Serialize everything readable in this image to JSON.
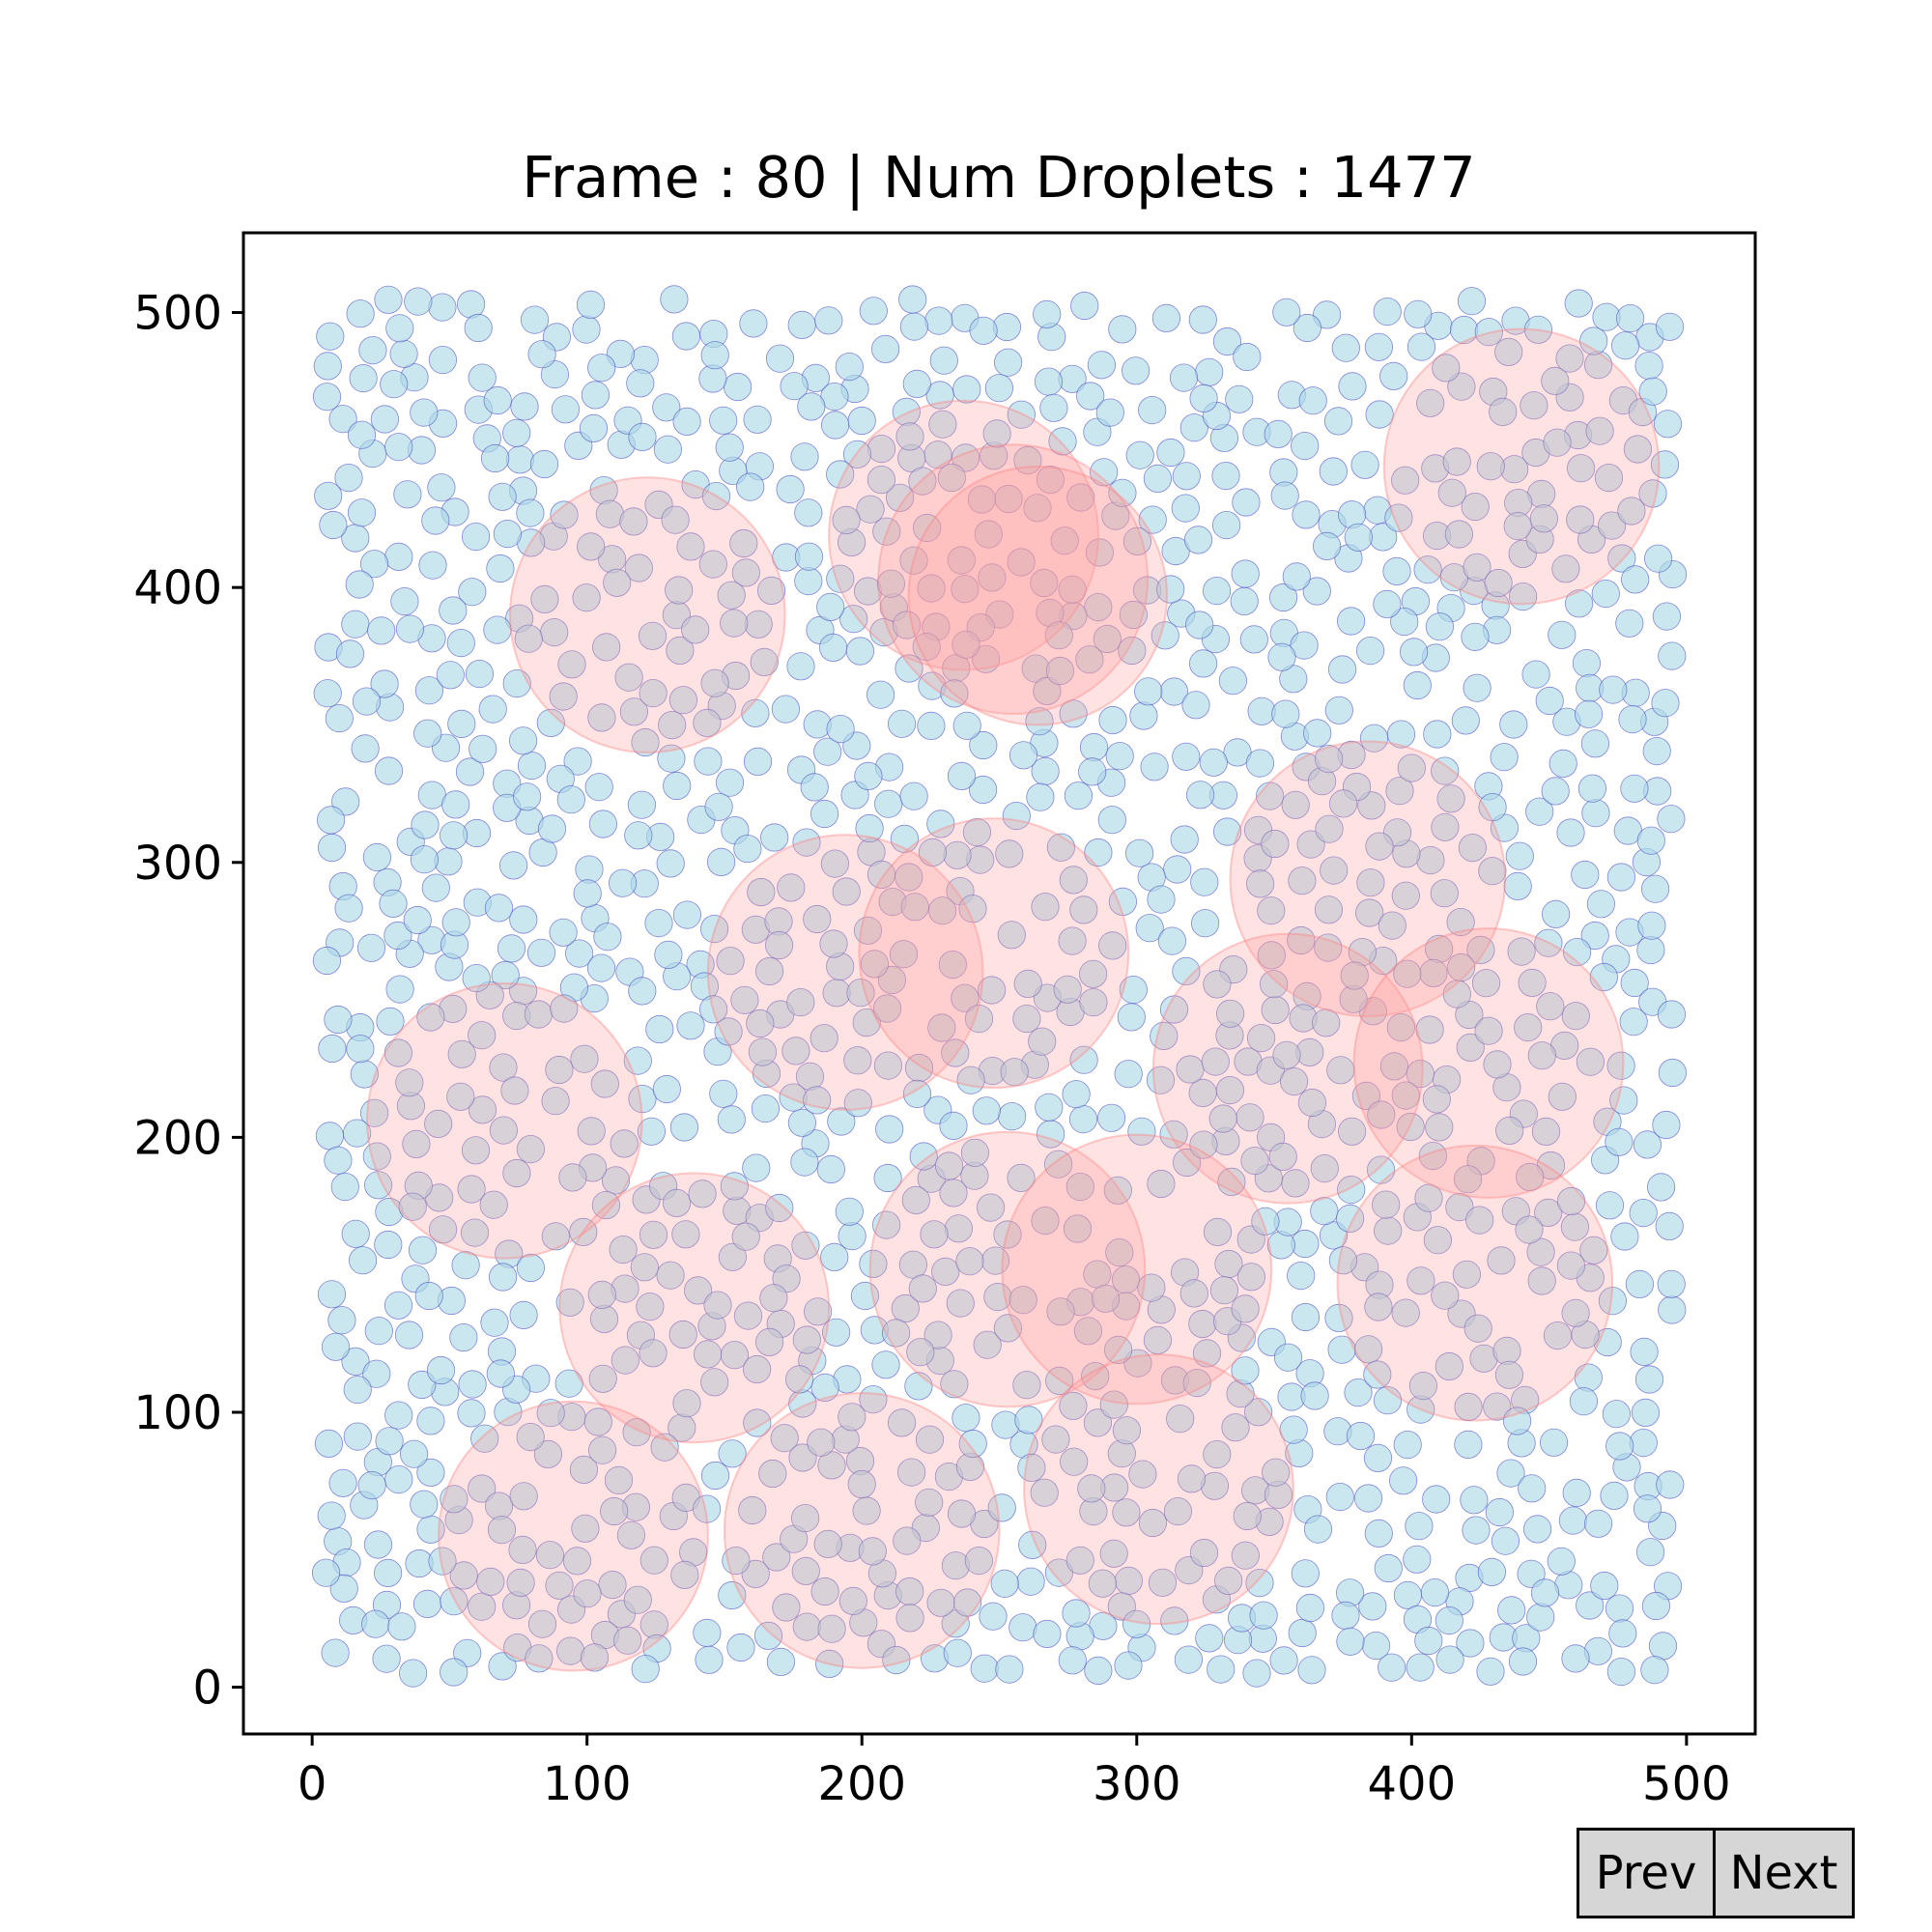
{
  "chart_data": {
    "type": "scatter",
    "title": "Frame : 80 | Num Droplets : 1477",
    "xlabel": "",
    "ylabel": "",
    "xlim": [
      -25,
      525
    ],
    "ylim": [
      -17,
      529
    ],
    "xticks": [
      0,
      100,
      200,
      300,
      400,
      500
    ],
    "yticks": [
      0,
      100,
      200,
      300,
      400,
      500
    ],
    "grid": false,
    "droplets": {
      "count": 1477,
      "radius": 5,
      "fill": "#add8e6",
      "fill_opacity": 0.65,
      "edge": "#3f3fbf",
      "seed": 80,
      "extent_x": [
        5,
        495
      ],
      "extent_y": [
        5,
        505
      ]
    },
    "clusters": {
      "fill": "#ff9999",
      "fill_opacity": 0.28,
      "edge": "#ff8080",
      "items": [
        {
          "x": 122,
          "y": 390,
          "r": 50
        },
        {
          "x": 237,
          "y": 419,
          "r": 49
        },
        {
          "x": 255,
          "y": 403,
          "r": 49
        },
        {
          "x": 264,
          "y": 397,
          "r": 47
        },
        {
          "x": 440,
          "y": 444,
          "r": 50
        },
        {
          "x": 384,
          "y": 294,
          "r": 50
        },
        {
          "x": 194,
          "y": 260,
          "r": 50
        },
        {
          "x": 248,
          "y": 267,
          "r": 49
        },
        {
          "x": 70,
          "y": 206,
          "r": 50
        },
        {
          "x": 355,
          "y": 225,
          "r": 49
        },
        {
          "x": 428,
          "y": 227,
          "r": 49
        },
        {
          "x": 139,
          "y": 138,
          "r": 49
        },
        {
          "x": 253,
          "y": 152,
          "r": 50
        },
        {
          "x": 300,
          "y": 152,
          "r": 49
        },
        {
          "x": 423,
          "y": 147,
          "r": 50
        },
        {
          "x": 95,
          "y": 55,
          "r": 49
        },
        {
          "x": 200,
          "y": 57,
          "r": 50
        },
        {
          "x": 308,
          "y": 72,
          "r": 49
        }
      ]
    }
  },
  "controls": {
    "prev_label": "Prev",
    "next_label": "Next"
  }
}
